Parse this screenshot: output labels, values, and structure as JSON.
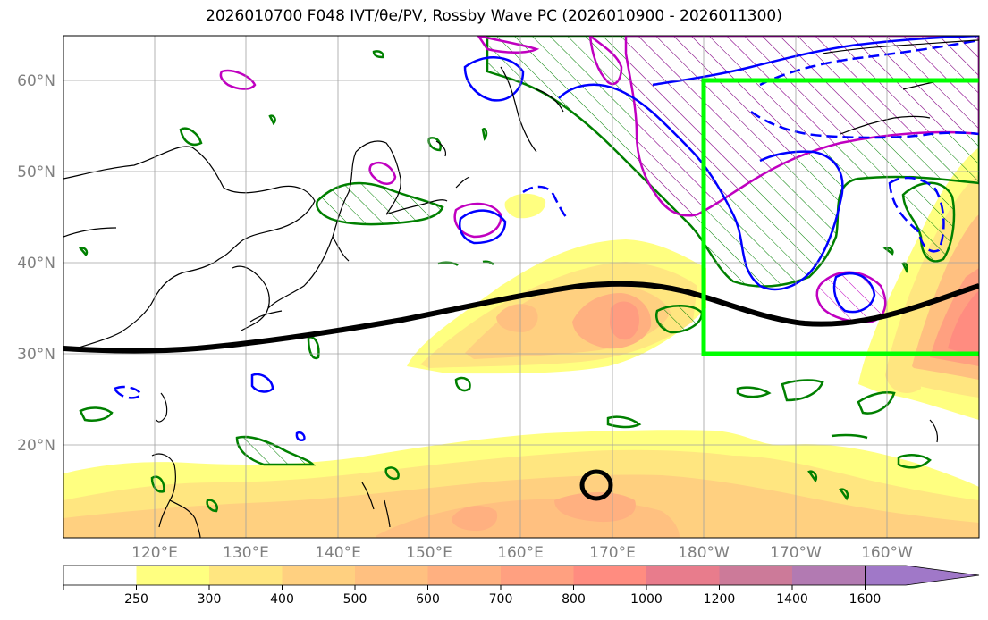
{
  "title": "2026010700 F048 IVT/θe/PV, Rossby Wave PC (2026010900 - 2026011300)",
  "lat_labels": [
    "60°N",
    "50°N",
    "40°N",
    "30°N",
    "20°N"
  ],
  "lon_labels": [
    "120°E",
    "130°E",
    "140°E",
    "150°E",
    "160°E",
    "170°E",
    "180°W",
    "170°W",
    "160°W"
  ],
  "colorbar": {
    "levels": [
      "250",
      "300",
      "400",
      "500",
      "600",
      "700",
      "800",
      "1000",
      "1200",
      "1400",
      "1600"
    ],
    "colors": [
      "#ffffff",
      "#ffff80",
      "#ffe680",
      "#ffd080",
      "#ffc080",
      "#ffb080",
      "#ffa080",
      "#ff8c80",
      "#e87c8c",
      "#cc7a99",
      "#b27ab2",
      "#a078c8"
    ]
  },
  "colors": {
    "ivt_shading": "#ffc060",
    "positive_pc": "#008000",
    "pv_contour": "#c000c0",
    "theta_contour": "#0000ff",
    "target_box": "#00ff00",
    "jet_line": "#000000"
  }
}
